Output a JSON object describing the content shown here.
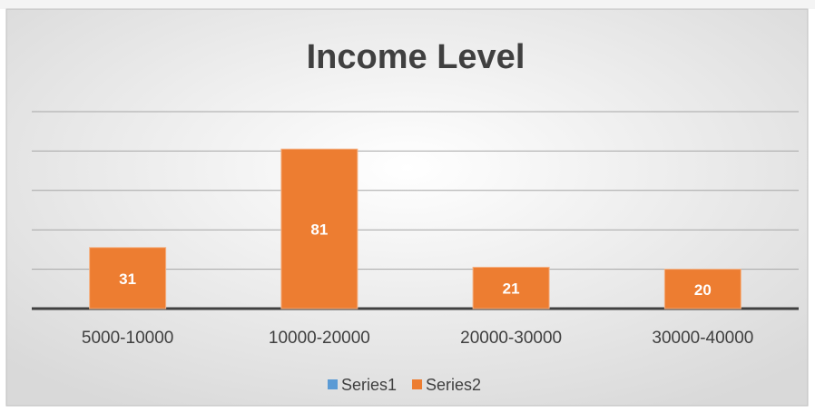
{
  "chart_data": {
    "type": "bar",
    "title": "Income Level",
    "categories": [
      "5000-10000",
      "10000-20000",
      "20000-30000",
      "30000-40000"
    ],
    "series": [
      {
        "name": "Series1",
        "color": "#5b9bd5",
        "values": [
          null,
          null,
          null,
          null
        ]
      },
      {
        "name": "Series2",
        "color": "#ed7d31",
        "values": [
          31,
          81,
          21,
          20
        ]
      }
    ],
    "ylim": [
      0,
      100
    ],
    "yticks": [
      0,
      20,
      40,
      60,
      80,
      100
    ],
    "grid": true,
    "legend": "bottom"
  }
}
